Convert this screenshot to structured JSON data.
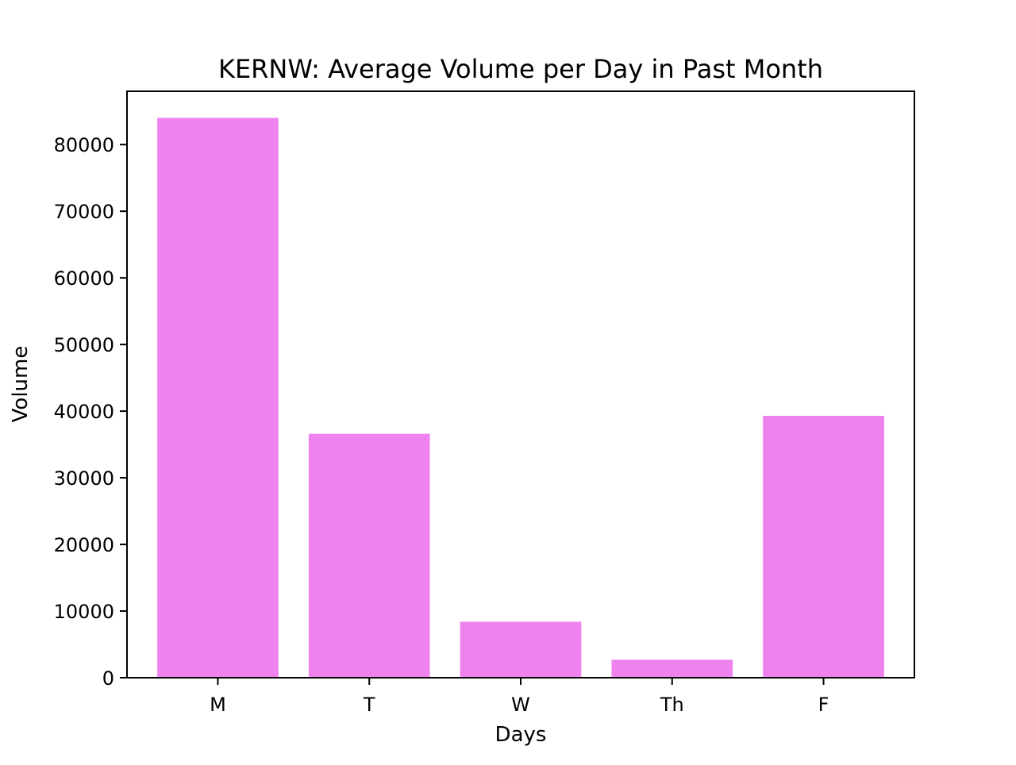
{
  "chart_data": {
    "type": "bar",
    "title": "KERNW: Average Volume per Day in Past Month",
    "xlabel": "Days",
    "ylabel": "Volume",
    "categories": [
      "M",
      "T",
      "W",
      "Th",
      "F"
    ],
    "values": [
      84000,
      36600,
      8400,
      2700,
      39300
    ],
    "ylim": [
      0,
      88000
    ],
    "yticks": [
      0,
      10000,
      20000,
      30000,
      40000,
      50000,
      60000,
      70000,
      80000
    ],
    "bar_color": "#ee82ee",
    "grid": false,
    "legend": "none"
  }
}
